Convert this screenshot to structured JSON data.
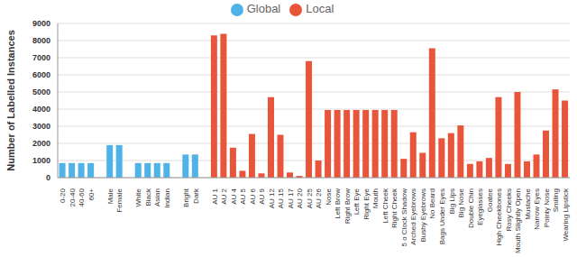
{
  "chart_data": {
    "type": "bar",
    "y_label": "Number of Labelled Instances",
    "categories": [
      "0-20",
      "20-40",
      "40-60",
      "60+",
      null,
      "Male",
      "Female",
      null,
      "White",
      "Black",
      "Asian",
      "Indian",
      null,
      "Bright",
      "Dark",
      null,
      "AU 1",
      "AU 2",
      "AU 4",
      "AU 5",
      "AU 6",
      "AU 9",
      "AU 12",
      "AU 15",
      "AU 17",
      "AU 20",
      "AU 25",
      "AU 26",
      "Nose",
      "Left Brow",
      "Right Brow",
      "Left Eye",
      "Right Eye",
      "Mouth",
      "Left Cheek",
      "Right Cheek",
      "5 o Clock Shadow",
      "Arched Eyebrows",
      "Bushy Eyebrows",
      "No Beard",
      "Bags Under Eyes",
      "Big Lips",
      "Big Nose",
      "Double Chin",
      "Eyeglasses",
      "Goatee",
      "High Cheekbones",
      "Rosy Cheeks",
      "Mouth Slightly Open",
      "Mustache",
      "Narrow Eyes",
      "Pointy Nose",
      "Smiling",
      "Wearing Lipstick"
    ],
    "series": [
      {
        "name": "Global",
        "color": "#4fb3e8",
        "values": [
          850,
          850,
          850,
          850,
          null,
          1900,
          1900,
          null,
          850,
          850,
          850,
          850,
          null,
          1350,
          1350,
          null,
          null,
          null,
          null,
          null,
          null,
          null,
          null,
          null,
          null,
          null,
          null,
          null,
          null,
          null,
          null,
          null,
          null,
          null,
          null,
          null,
          null,
          null,
          null,
          null,
          null,
          null,
          null,
          null,
          null,
          null,
          null,
          null,
          null,
          null,
          null,
          null,
          null,
          null
        ]
      },
      {
        "name": "Local",
        "color": "#e8553a",
        "values": [
          null,
          null,
          null,
          null,
          null,
          null,
          null,
          null,
          null,
          null,
          null,
          null,
          null,
          null,
          null,
          null,
          8300,
          8400,
          1750,
          400,
          2550,
          250,
          4700,
          2500,
          300,
          100,
          6800,
          1000,
          3950,
          3950,
          3950,
          3950,
          3950,
          3950,
          3950,
          3950,
          1100,
          2650,
          1450,
          7550,
          2300,
          2600,
          3050,
          800,
          950,
          1150,
          4700,
          800,
          5000,
          950,
          1350,
          2750,
          5150,
          4500
        ]
      }
    ],
    "ylim": [
      0,
      9000
    ],
    "yticks": [
      0,
      1000,
      2000,
      3000,
      4000,
      5000,
      6000,
      7000,
      8000,
      9000
    ],
    "grid": true,
    "legend": "top"
  }
}
